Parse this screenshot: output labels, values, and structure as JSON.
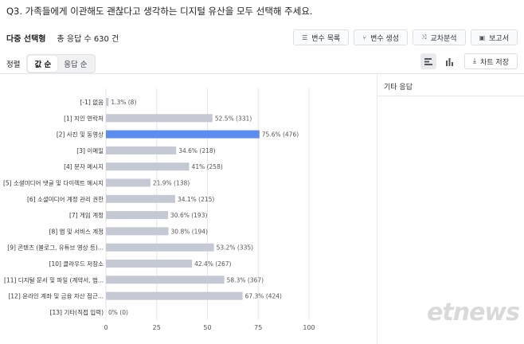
{
  "question": "Q3. 가족들에게 이관해도 괜찮다고 생각하는 디지털 유산을 모두 선택해 주세요.",
  "meta": {
    "type": "다중 선택형",
    "total": "총 응답 수 630 건"
  },
  "toolbar": {
    "variable_list": "변수 목록",
    "create_variable": "변수 생성",
    "cross_analysis": "교차분석",
    "report": "보고서"
  },
  "sort": {
    "label": "정렬",
    "by_value": "값 순",
    "by_response": "응답 순"
  },
  "view": {
    "save_chart": "차트 저장"
  },
  "side": {
    "title": "기타 응답"
  },
  "watermark": "etnews",
  "colors": {
    "bar": "#c5c9d3",
    "highlight": "#5b8def"
  },
  "chart_data": {
    "type": "bar",
    "orientation": "horizontal",
    "categories": [
      "[-1] 없음",
      "[1] 지인 연락처",
      "[2] 사진 및 동영상",
      "[3] 이메일",
      "[4] 문자 메시지",
      "[5] 소셜미디어 댓글 및 다이렉트 메시지",
      "[6] 소셜미디어 계정 관리 권한",
      "[7] 게임 계정",
      "[8] 앱 및 서비스 계정",
      "[9] 콘텐츠 (블로그, 유튜브 영상 등)...",
      "[10] 클라우드 저장소",
      "[11] 디지털 문서 및 파일 (계약서, 법...",
      "[12] 온라인 계좌 및 금융 자산 접근...",
      "[13] 기타(직접 입력)"
    ],
    "values": [
      1.3,
      52.5,
      75.6,
      34.6,
      41,
      21.9,
      34.1,
      30.6,
      30.8,
      53.2,
      42.4,
      58.3,
      67.3,
      0
    ],
    "labels": [
      "1.3% (8)",
      "52.5% (331)",
      "75.6% (476)",
      "34.6% (218)",
      "41% (258)",
      "21.9% (138)",
      "34.1% (215)",
      "30.6% (193)",
      "30.8% (194)",
      "53.2% (335)",
      "42.4% (267)",
      "58.3% (367)",
      "67.3% (424)",
      "0% (0)"
    ],
    "highlight_index": 2,
    "xlim": [
      0,
      100
    ],
    "xticks": [
      "0",
      "25",
      "50",
      "75",
      "100"
    ],
    "grid": true
  }
}
